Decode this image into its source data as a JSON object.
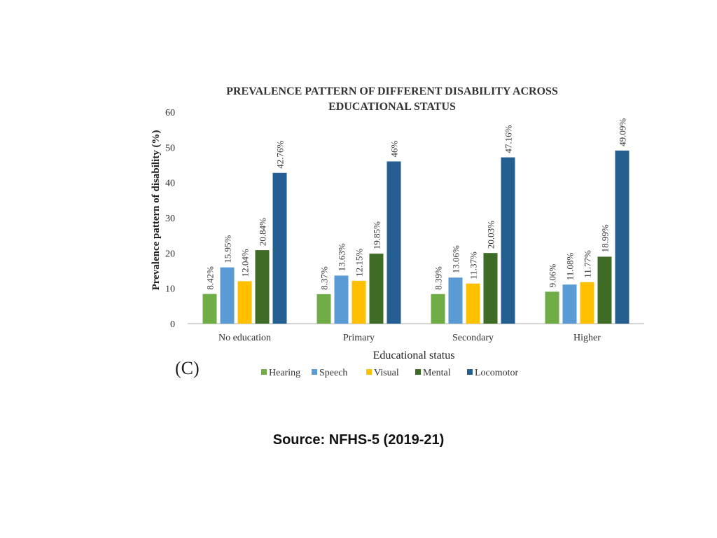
{
  "panel_label": "(C)",
  "source": "Source: NFHS-5 (2019-21)",
  "chart_data": {
    "type": "bar",
    "title_lines": [
      "PREVALENCE PATTERN OF DIFFERENT DISABILITY ACROSS",
      "EDUCATIONAL STATUS"
    ],
    "xlabel": "Educational status",
    "ylabel": "Prevalence pattern of disability (%)",
    "ylim": [
      0,
      60
    ],
    "yticks": [
      0,
      10,
      20,
      30,
      40,
      50,
      60
    ],
    "grid": false,
    "legend_position": "bottom",
    "categories": [
      "No education",
      "Primary",
      "Secondary",
      "Higher"
    ],
    "series": [
      {
        "name": "Hearing",
        "color": "#70ad47",
        "values": [
          8.42,
          8.37,
          8.39,
          9.06
        ],
        "labels": [
          "8.42%",
          "8.37%",
          "8.39%",
          "9.06%"
        ]
      },
      {
        "name": "Speech",
        "color": "#5b9bd5",
        "values": [
          15.95,
          13.63,
          13.06,
          11.08
        ],
        "labels": [
          "15.95%",
          "13.63%",
          "13.06%",
          "11.08%"
        ]
      },
      {
        "name": "Visual",
        "color": "#ffc000",
        "values": [
          12.04,
          12.15,
          11.37,
          11.77
        ],
        "labels": [
          "12.04%",
          "12.15%",
          "11.37%",
          "11.77%"
        ]
      },
      {
        "name": "Mental",
        "color": "#3e6b25",
        "values": [
          20.84,
          19.85,
          20.03,
          18.99
        ],
        "labels": [
          "20.84%",
          "19.85%",
          "20.03%",
          "18.99%"
        ]
      },
      {
        "name": "Locomotor",
        "color": "#255e91",
        "values": [
          42.76,
          46,
          47.16,
          49.09
        ],
        "labels": [
          "42.76%",
          "46%",
          "47.16%",
          "49.09%"
        ]
      }
    ]
  }
}
